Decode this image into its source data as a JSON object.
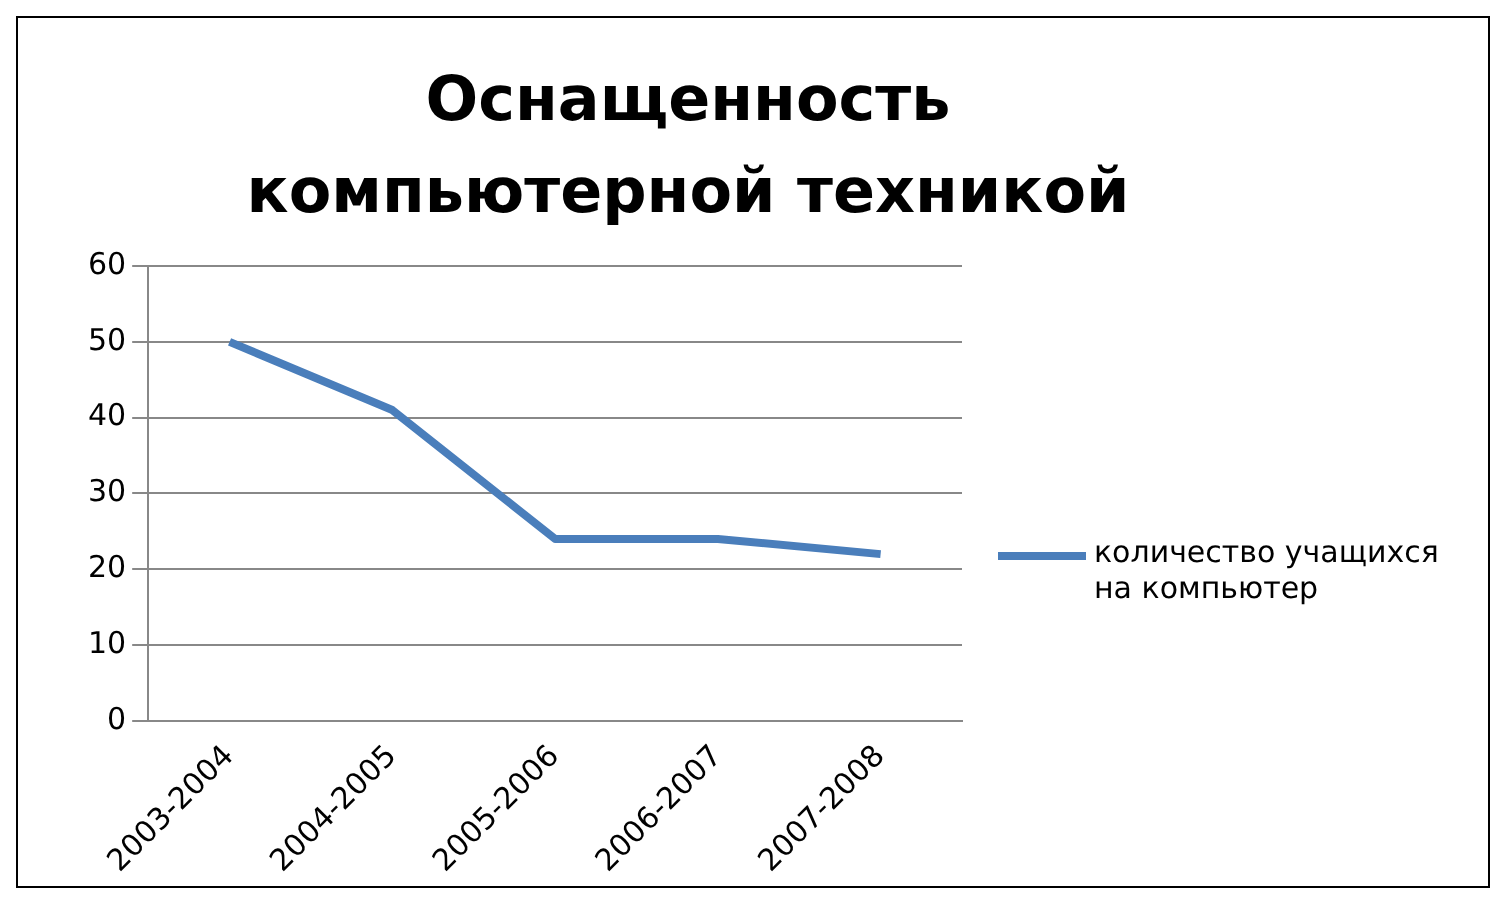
{
  "chart_data": {
    "type": "line",
    "title": "Оснащенность компьютерной техникой",
    "categories": [
      "2003-2004",
      "2004-2005",
      "2005-2006",
      "2006-2007",
      "2007-2008"
    ],
    "series": [
      {
        "name": "количество учащихся на компьютер",
        "color": "#4a7ebb",
        "values": [
          50,
          41,
          24,
          24,
          22
        ]
      }
    ],
    "ylim": [
      0,
      60
    ],
    "yticks": [
      0,
      10,
      20,
      30,
      40,
      50,
      60
    ],
    "grid": "y",
    "legend": "right",
    "marker": "none"
  }
}
